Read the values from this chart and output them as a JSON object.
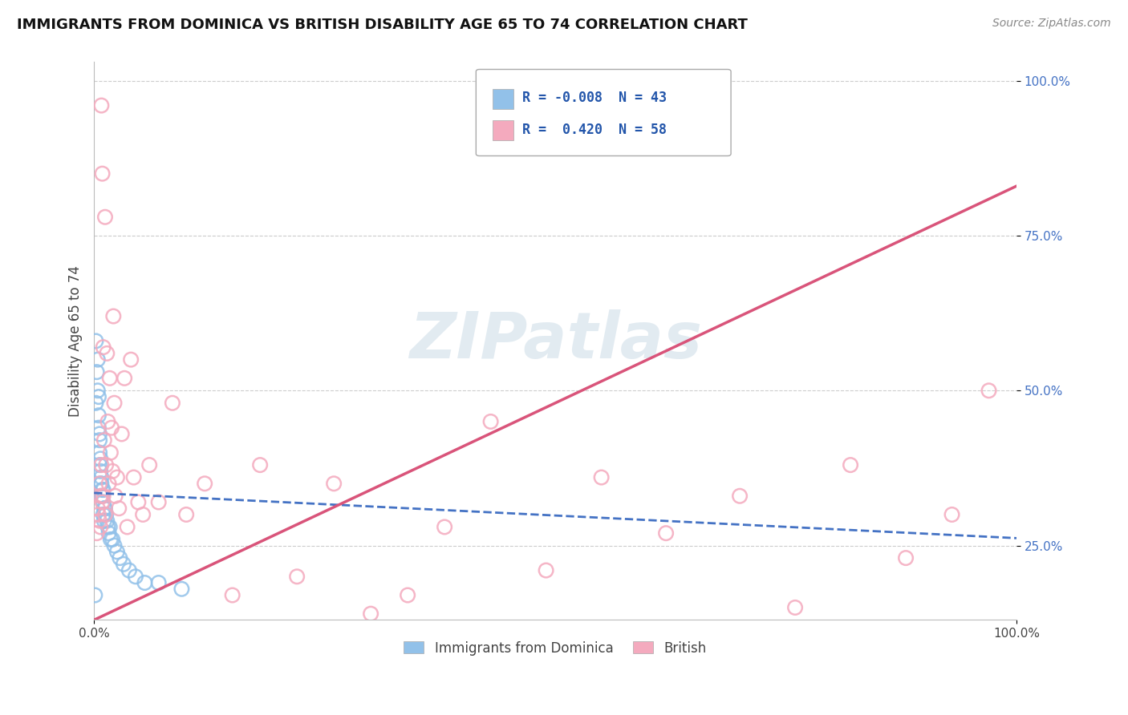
{
  "title": "IMMIGRANTS FROM DOMINICA VS BRITISH DISABILITY AGE 65 TO 74 CORRELATION CHART",
  "source": "Source: ZipAtlas.com",
  "ylabel": "Disability Age 65 to 74",
  "watermark": "ZIPatlas",
  "legend": {
    "blue_R": "-0.008",
    "blue_N": "43",
    "pink_R": "0.420",
    "pink_N": "58",
    "blue_label": "Immigrants from Dominica",
    "pink_label": "British"
  },
  "xlim": [
    -0.01,
    1.0
  ],
  "ylim": [
    0.1,
    1.05
  ],
  "plot_xlim": [
    0.0,
    1.0
  ],
  "plot_ylim": [
    0.13,
    1.03
  ],
  "y_ticks": [
    0.25,
    0.5,
    0.75,
    1.0
  ],
  "y_tick_labels": [
    "25.0%",
    "50.0%",
    "75.0%",
    "100.0%"
  ],
  "blue_color": "#92C1E9",
  "pink_color": "#F4AABE",
  "blue_line_color": "#4472C4",
  "pink_line_color": "#D9547A",
  "grid_color": "#CCCCCC",
  "background_color": "#FFFFFF",
  "blue_scatter_x": [
    0.001,
    0.002,
    0.002,
    0.003,
    0.004,
    0.004,
    0.005,
    0.005,
    0.005,
    0.006,
    0.006,
    0.006,
    0.006,
    0.007,
    0.007,
    0.007,
    0.008,
    0.008,
    0.008,
    0.009,
    0.009,
    0.01,
    0.01,
    0.01,
    0.011,
    0.011,
    0.012,
    0.013,
    0.014,
    0.015,
    0.016,
    0.017,
    0.018,
    0.02,
    0.022,
    0.025,
    0.028,
    0.032,
    0.038,
    0.045,
    0.055,
    0.07,
    0.095
  ],
  "blue_scatter_y": [
    0.17,
    0.48,
    0.58,
    0.53,
    0.5,
    0.55,
    0.44,
    0.46,
    0.49,
    0.4,
    0.42,
    0.43,
    0.38,
    0.37,
    0.39,
    0.35,
    0.35,
    0.33,
    0.36,
    0.33,
    0.34,
    0.32,
    0.3,
    0.34,
    0.31,
    0.29,
    0.31,
    0.3,
    0.29,
    0.28,
    0.27,
    0.28,
    0.26,
    0.26,
    0.25,
    0.24,
    0.23,
    0.22,
    0.21,
    0.2,
    0.19,
    0.19,
    0.18
  ],
  "pink_scatter_x": [
    0.003,
    0.004,
    0.005,
    0.006,
    0.006,
    0.007,
    0.007,
    0.008,
    0.008,
    0.009,
    0.009,
    0.01,
    0.01,
    0.011,
    0.012,
    0.012,
    0.013,
    0.014,
    0.015,
    0.016,
    0.017,
    0.018,
    0.019,
    0.02,
    0.021,
    0.022,
    0.023,
    0.025,
    0.027,
    0.03,
    0.033,
    0.036,
    0.04,
    0.043,
    0.048,
    0.053,
    0.06,
    0.07,
    0.085,
    0.1,
    0.12,
    0.15,
    0.18,
    0.22,
    0.26,
    0.3,
    0.34,
    0.38,
    0.43,
    0.49,
    0.55,
    0.62,
    0.7,
    0.76,
    0.82,
    0.88,
    0.93,
    0.97
  ],
  "pink_scatter_y": [
    0.27,
    0.31,
    0.3,
    0.29,
    0.35,
    0.28,
    0.33,
    0.38,
    0.96,
    0.32,
    0.85,
    0.33,
    0.57,
    0.42,
    0.3,
    0.78,
    0.38,
    0.56,
    0.45,
    0.35,
    0.52,
    0.4,
    0.44,
    0.37,
    0.62,
    0.48,
    0.33,
    0.36,
    0.31,
    0.43,
    0.52,
    0.28,
    0.55,
    0.36,
    0.32,
    0.3,
    0.38,
    0.32,
    0.48,
    0.3,
    0.35,
    0.17,
    0.38,
    0.2,
    0.35,
    0.14,
    0.17,
    0.28,
    0.45,
    0.21,
    0.36,
    0.27,
    0.33,
    0.15,
    0.38,
    0.23,
    0.3,
    0.5
  ],
  "blue_line_x0": 0.0,
  "blue_line_x1": 1.0,
  "blue_line_y0": 0.335,
  "blue_line_y1": 0.262,
  "pink_line_x0": 0.0,
  "pink_line_x1": 1.0,
  "pink_line_y0": 0.13,
  "pink_line_y1": 0.83
}
